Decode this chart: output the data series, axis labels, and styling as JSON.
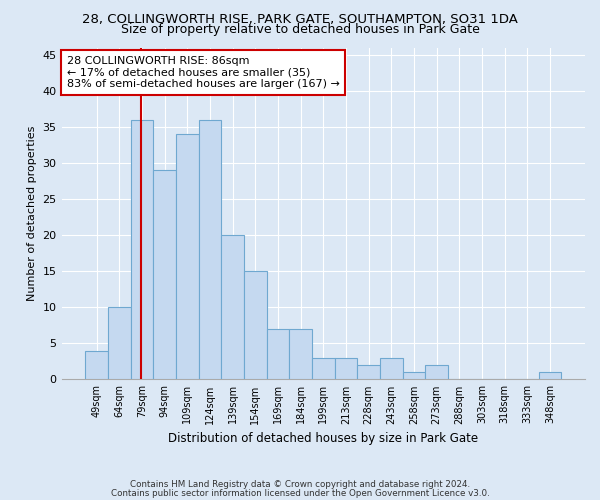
{
  "title": "28, COLLINGWORTH RISE, PARK GATE, SOUTHAMPTON, SO31 1DA",
  "subtitle": "Size of property relative to detached houses in Park Gate",
  "xlabel": "Distribution of detached houses by size in Park Gate",
  "ylabel": "Number of detached properties",
  "bin_labels": [
    "49sqm",
    "64sqm",
    "79sqm",
    "94sqm",
    "109sqm",
    "124sqm",
    "139sqm",
    "154sqm",
    "169sqm",
    "184sqm",
    "199sqm",
    "213sqm",
    "228sqm",
    "243sqm",
    "258sqm",
    "273sqm",
    "288sqm",
    "303sqm",
    "318sqm",
    "333sqm",
    "348sqm"
  ],
  "bar_heights": [
    4,
    10,
    36,
    29,
    34,
    36,
    20,
    15,
    7,
    7,
    3,
    3,
    2,
    3,
    1,
    2,
    0,
    0,
    0,
    0,
    1
  ],
  "bar_color": "#c5d9f0",
  "bar_edge_color": "#6fa8d0",
  "bar_edge_width": 0.8,
  "ylim": [
    0,
    46
  ],
  "yticks": [
    0,
    5,
    10,
    15,
    20,
    25,
    30,
    35,
    40,
    45
  ],
  "red_line_color": "#cc0000",
  "annotation_text": "28 COLLINGWORTH RISE: 86sqm\n← 17% of detached houses are smaller (35)\n83% of semi-detached houses are larger (167) →",
  "annotation_box_color": "white",
  "annotation_box_edge_color": "#cc0000",
  "footer_line1": "Contains HM Land Registry data © Crown copyright and database right 2024.",
  "footer_line2": "Contains public sector information licensed under the Open Government Licence v3.0.",
  "background_color": "#dce8f5",
  "plot_bg_color": "#dce8f5",
  "title_fontsize": 9.5,
  "subtitle_fontsize": 9,
  "xlabel_fontsize": 8.5,
  "ylabel_fontsize": 8,
  "grid_color": "white",
  "tick_label_fontsize": 7,
  "ytick_fontsize": 8,
  "annotation_fontsize": 8
}
